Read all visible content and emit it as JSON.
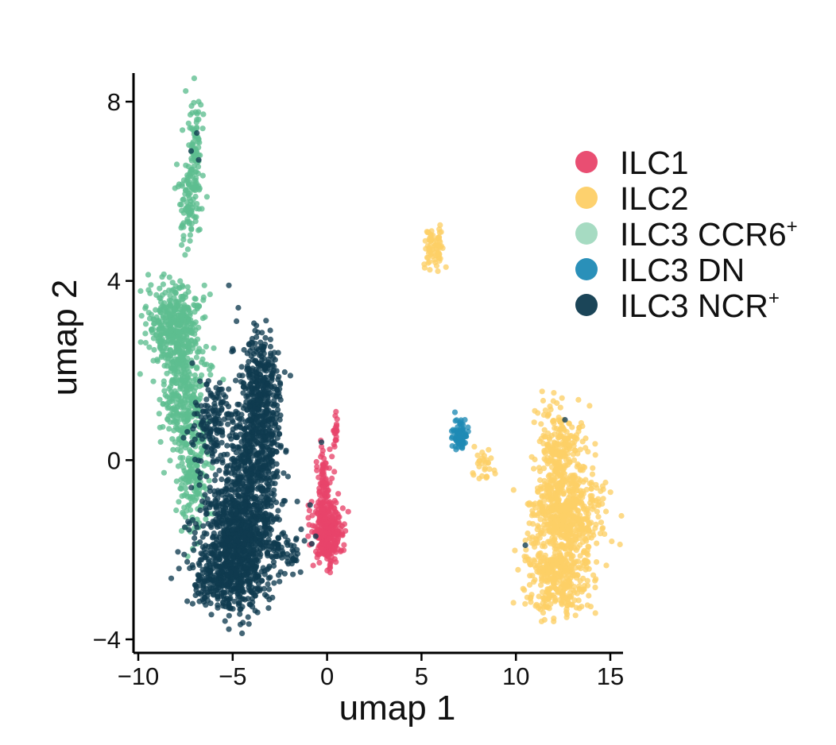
{
  "chart_data": {
    "type": "scatter",
    "title": "",
    "xlabel": "umap 1",
    "ylabel": "umap 2",
    "xlim": [
      -10.2,
      15.6
    ],
    "ylim": [
      -4.4,
      8.7
    ],
    "xticks": [
      -10,
      -5,
      0,
      5,
      10,
      15
    ],
    "xtick_labels": [
      "−10",
      "−5",
      "0",
      "5",
      "10",
      "15"
    ],
    "yticks": [
      -4,
      0,
      4,
      8
    ],
    "ytick_labels": [
      "−4",
      "0",
      "4",
      "8"
    ],
    "grid": false,
    "legend_position": "right",
    "series": [
      {
        "name": "ILC1",
        "sup": "",
        "color": "#E8446A",
        "points": [
          [
            -0.3,
            0.3
          ],
          [
            -0.2,
            -0.5
          ],
          [
            0.0,
            -1.0
          ],
          [
            -0.1,
            -1.3
          ],
          [
            0.2,
            -1.5
          ],
          [
            -0.2,
            -1.7
          ],
          [
            0.1,
            -1.9
          ],
          [
            0.3,
            -2.0
          ],
          [
            -0.4,
            -2.1
          ],
          [
            0.0,
            -2.2
          ],
          [
            0.5,
            -1.6
          ],
          [
            0.4,
            0.6
          ],
          [
            0.5,
            0.8
          ],
          [
            0.4,
            0.3
          ],
          [
            -0.5,
            -1.2
          ],
          [
            -0.8,
            -1.6
          ],
          [
            -1.0,
            -1.7
          ]
        ],
        "clusters": [
          {
            "cx": 0.0,
            "cy": -1.6,
            "sx": 0.38,
            "sy": 0.35,
            "n": 340
          },
          {
            "cx": -0.2,
            "cy": -0.5,
            "sx": 0.2,
            "sy": 0.45,
            "n": 70
          },
          {
            "cx": 0.45,
            "cy": 0.65,
            "sx": 0.07,
            "sy": 0.18,
            "n": 18
          }
        ]
      },
      {
        "name": "ILC2",
        "sup": "",
        "color": "#FDCF66",
        "points": [
          [
            5.5,
            5.0
          ],
          [
            5.9,
            4.8
          ],
          [
            6.0,
            4.5
          ],
          [
            5.4,
            4.7
          ],
          [
            7.8,
            0.3
          ],
          [
            8.3,
            0.0
          ],
          [
            8.6,
            -0.2
          ],
          [
            8.9,
            -0.3
          ],
          [
            11.0,
            1.1
          ],
          [
            11.8,
            1.2
          ],
          [
            12.5,
            0.9
          ],
          [
            12.0,
            -3.6
          ],
          [
            11.2,
            -3.3
          ],
          [
            13.5,
            -1.0
          ],
          [
            14.0,
            -0.5
          ],
          [
            10.7,
            -1.0
          ],
          [
            13.8,
            -2.8
          ]
        ],
        "clusters": [
          {
            "cx": 5.7,
            "cy": 4.75,
            "sx": 0.25,
            "sy": 0.22,
            "n": 70
          },
          {
            "cx": 8.3,
            "cy": -0.05,
            "sx": 0.3,
            "sy": 0.2,
            "n": 25
          },
          {
            "cx": 12.3,
            "cy": 0.1,
            "sx": 0.65,
            "sy": 0.55,
            "n": 260
          },
          {
            "cx": 12.7,
            "cy": -1.2,
            "sx": 0.9,
            "sy": 0.5,
            "n": 520
          },
          {
            "cx": 12.2,
            "cy": -2.6,
            "sx": 0.85,
            "sy": 0.45,
            "n": 380
          }
        ]
      },
      {
        "name": "ILC3 CCR6",
        "sup": "+",
        "color": "#5DBE8F",
        "points": [
          [
            -6.8,
            8.0
          ],
          [
            -6.9,
            7.6
          ],
          [
            -7.0,
            7.2
          ],
          [
            -7.3,
            6.2
          ],
          [
            -7.5,
            5.6
          ],
          [
            -7.6,
            5.2
          ],
          [
            -7.7,
            4.8
          ],
          [
            -9.3,
            2.9
          ],
          [
            -8.8,
            3.4
          ],
          [
            -7.5,
            3.7
          ],
          [
            -6.5,
            3.9
          ],
          [
            -6.2,
            3.7
          ],
          [
            -7.0,
            1.2
          ],
          [
            -7.5,
            0.6
          ],
          [
            -7.2,
            -0.2
          ],
          [
            -7.0,
            -0.9
          ],
          [
            -6.8,
            -1.5
          ],
          [
            -7.3,
            -1.0
          ],
          [
            -6.0,
            2.5
          ],
          [
            -5.5,
            1.8
          ]
        ],
        "clusters": [
          {
            "cx": -7.0,
            "cy": 7.0,
            "sx": 0.18,
            "sy": 0.55,
            "n": 80
          },
          {
            "cx": -7.3,
            "cy": 5.8,
            "sx": 0.3,
            "sy": 0.45,
            "n": 90
          },
          {
            "cx": -8.0,
            "cy": 2.9,
            "sx": 0.7,
            "sy": 0.5,
            "n": 420
          },
          {
            "cx": -7.6,
            "cy": 1.4,
            "sx": 0.55,
            "sy": 0.6,
            "n": 260
          },
          {
            "cx": -7.1,
            "cy": -0.3,
            "sx": 0.45,
            "sy": 0.6,
            "n": 170
          }
        ]
      },
      {
        "name": "ILC3 DN",
        "sup": "",
        "color": "#1F8AB5",
        "points": [
          [
            7.0,
            0.5
          ],
          [
            7.2,
            0.7
          ],
          [
            7.3,
            0.9
          ],
          [
            6.8,
            0.3
          ],
          [
            7.1,
            0.3
          ]
        ],
        "clusters": [
          {
            "cx": 7.05,
            "cy": 0.55,
            "sx": 0.18,
            "sy": 0.16,
            "n": 70
          }
        ]
      },
      {
        "name": "ILC3 NCR",
        "sup": "+",
        "color": "#0F3B4F",
        "points": [
          [
            -6.9,
            7.3
          ],
          [
            -7.2,
            6.9
          ],
          [
            -6.8,
            6.7
          ],
          [
            -5.2,
            3.9
          ],
          [
            -4.7,
            3.4
          ],
          [
            -4.8,
            3.1
          ],
          [
            -2.8,
            2.4
          ],
          [
            -2.6,
            1.8
          ],
          [
            -5.2,
            -3.3
          ],
          [
            -4.5,
            -3.1
          ],
          [
            -3.8,
            -2.6
          ],
          [
            -1.6,
            -2.0
          ],
          [
            -1.2,
            -1.8
          ],
          [
            -0.6,
            -1.7
          ],
          [
            -7.1,
            0.7
          ],
          [
            -7.6,
            0.5
          ],
          [
            -6.7,
            -0.3
          ],
          [
            -5.8,
            1.5
          ],
          [
            -0.3,
            0.4
          ],
          [
            12.6,
            0.9
          ],
          [
            10.5,
            -1.9
          ],
          [
            -0.9,
            -1.0
          ],
          [
            -1.8,
            -2.2
          ]
        ],
        "clusters": [
          {
            "cx": -3.5,
            "cy": 1.6,
            "sx": 0.55,
            "sy": 0.55,
            "n": 320
          },
          {
            "cx": -3.8,
            "cy": 0.1,
            "sx": 0.7,
            "sy": 0.6,
            "n": 380
          },
          {
            "cx": -4.6,
            "cy": -1.5,
            "sx": 1.0,
            "sy": 0.6,
            "n": 760
          },
          {
            "cx": -5.2,
            "cy": -2.6,
            "sx": 1.0,
            "sy": 0.4,
            "n": 430
          },
          {
            "cx": -6.0,
            "cy": 0.8,
            "sx": 0.5,
            "sy": 0.5,
            "n": 150
          },
          {
            "cx": -2.2,
            "cy": -2.0,
            "sx": 0.5,
            "sy": 0.2,
            "n": 45
          }
        ]
      }
    ]
  }
}
